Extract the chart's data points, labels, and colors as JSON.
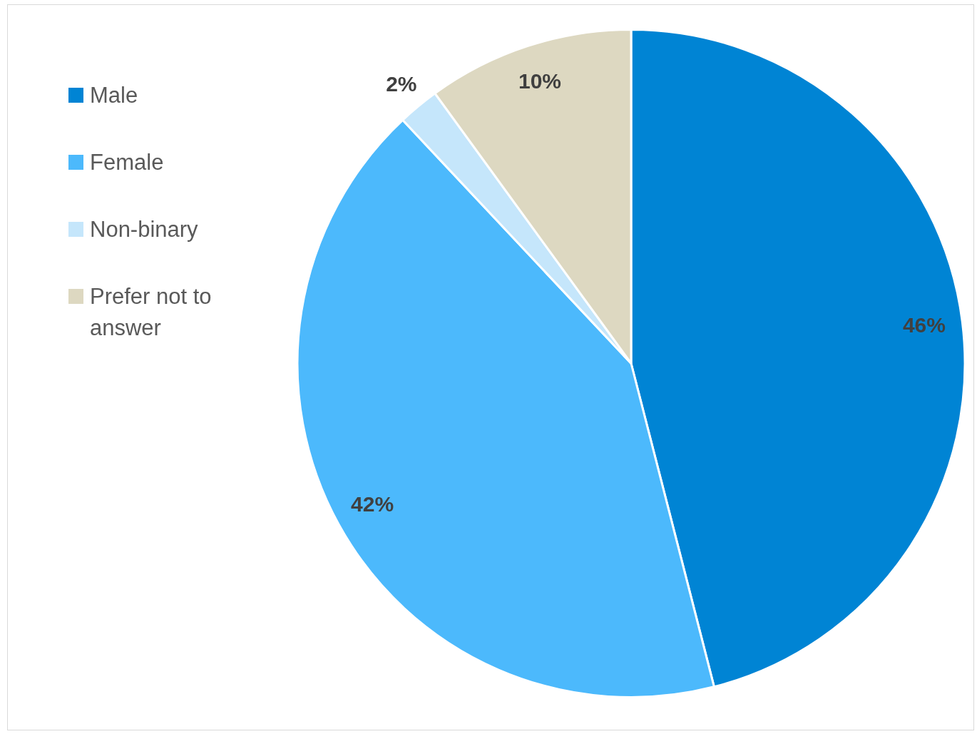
{
  "chart_data": {
    "type": "pie",
    "categories": [
      "Male",
      "Female",
      "Non-binary",
      "Prefer not to answer"
    ],
    "values": [
      46,
      42,
      2,
      10
    ],
    "value_labels": [
      "46%",
      "42%",
      "2%",
      "10%"
    ],
    "colors": [
      "#0084d4",
      "#4cb9fc",
      "#c5e6fb",
      "#ddd8c1"
    ],
    "legend": "left"
  }
}
